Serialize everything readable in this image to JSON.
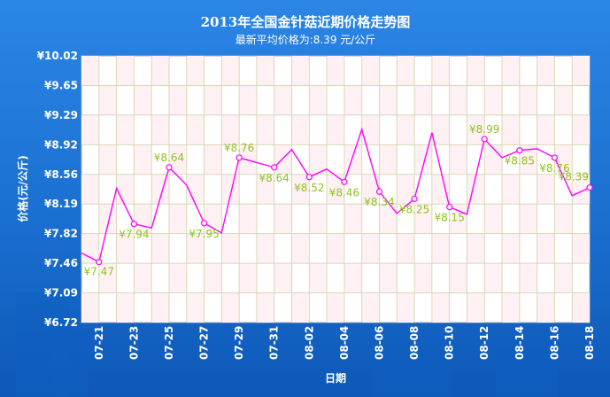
{
  "colors": {
    "background": "#1a6fd0",
    "background_dark": "#0b4fa8",
    "plot_background": "#ffffff",
    "grid": "#d8d8b8",
    "line": "#ff00ff",
    "marker_fill": "#ffffff",
    "label": "#8fc31f",
    "text": "#ffffff"
  },
  "chart_data": {
    "type": "line",
    "title": "2013年全国金针菇近期价格走势图",
    "subtitle": "最新平均价格为:8.39 元/公斤",
    "xlabel": "日期",
    "ylabel": "价格(元/公斤)",
    "ylim": [
      6.72,
      10.02
    ],
    "yticks": [
      "¥6.72",
      "¥7.09",
      "¥7.46",
      "¥7.82",
      "¥8.19",
      "¥8.56",
      "¥8.92",
      "¥9.29",
      "¥9.65",
      "¥10.02"
    ],
    "xticks": [
      "07-21",
      "07-23",
      "07-25",
      "07-27",
      "07-29",
      "07-31",
      "08-02",
      "08-04",
      "08-06",
      "08-08",
      "08-10",
      "08-12",
      "08-14",
      "08-16",
      "08-18"
    ],
    "grid": true,
    "legend": "none",
    "points": [
      {
        "date": "07-20",
        "value": 7.58,
        "marker": false,
        "label": ""
      },
      {
        "date": "07-21",
        "value": 7.47,
        "marker": true,
        "label": "¥7.47"
      },
      {
        "date": "07-22",
        "value": 8.38,
        "marker": false,
        "label": ""
      },
      {
        "date": "07-23",
        "value": 7.94,
        "marker": true,
        "label": "¥7.94"
      },
      {
        "date": "07-24",
        "value": 7.89,
        "marker": false,
        "label": ""
      },
      {
        "date": "07-25",
        "value": 8.64,
        "marker": true,
        "label": "¥8.64"
      },
      {
        "date": "07-26",
        "value": 8.42,
        "marker": false,
        "label": ""
      },
      {
        "date": "07-27",
        "value": 7.95,
        "marker": true,
        "label": "¥7.95"
      },
      {
        "date": "07-28",
        "value": 7.83,
        "marker": false,
        "label": ""
      },
      {
        "date": "07-29",
        "value": 8.76,
        "marker": true,
        "label": "¥8.76"
      },
      {
        "date": "07-30",
        "value": 8.7,
        "marker": false,
        "label": ""
      },
      {
        "date": "07-31",
        "value": 8.64,
        "marker": true,
        "label": "¥8.64"
      },
      {
        "date": "08-01",
        "value": 8.86,
        "marker": false,
        "label": ""
      },
      {
        "date": "08-02",
        "value": 8.52,
        "marker": true,
        "label": "¥8.52"
      },
      {
        "date": "08-03",
        "value": 8.62,
        "marker": false,
        "label": ""
      },
      {
        "date": "08-04",
        "value": 8.46,
        "marker": true,
        "label": "¥8.46"
      },
      {
        "date": "08-05",
        "value": 9.11,
        "marker": false,
        "label": ""
      },
      {
        "date": "08-06",
        "value": 8.34,
        "marker": true,
        "label": "¥8.34"
      },
      {
        "date": "08-07",
        "value": 8.07,
        "marker": false,
        "label": ""
      },
      {
        "date": "08-08",
        "value": 8.25,
        "marker": true,
        "label": "¥8.25"
      },
      {
        "date": "08-09",
        "value": 9.07,
        "marker": false,
        "label": ""
      },
      {
        "date": "08-10",
        "value": 8.15,
        "marker": true,
        "label": "¥8.15"
      },
      {
        "date": "08-11",
        "value": 8.06,
        "marker": false,
        "label": ""
      },
      {
        "date": "08-12",
        "value": 8.99,
        "marker": true,
        "label": "¥8.99"
      },
      {
        "date": "08-13",
        "value": 8.76,
        "marker": false,
        "label": ""
      },
      {
        "date": "08-14",
        "value": 8.85,
        "marker": true,
        "label": "¥8.85"
      },
      {
        "date": "08-15",
        "value": 8.87,
        "marker": false,
        "label": ""
      },
      {
        "date": "08-16",
        "value": 8.76,
        "marker": true,
        "label": "¥8.76"
      },
      {
        "date": "08-17",
        "value": 8.29,
        "marker": false,
        "label": ""
      },
      {
        "date": "08-18",
        "value": 8.39,
        "marker": true,
        "label": "¥8.39"
      }
    ]
  }
}
